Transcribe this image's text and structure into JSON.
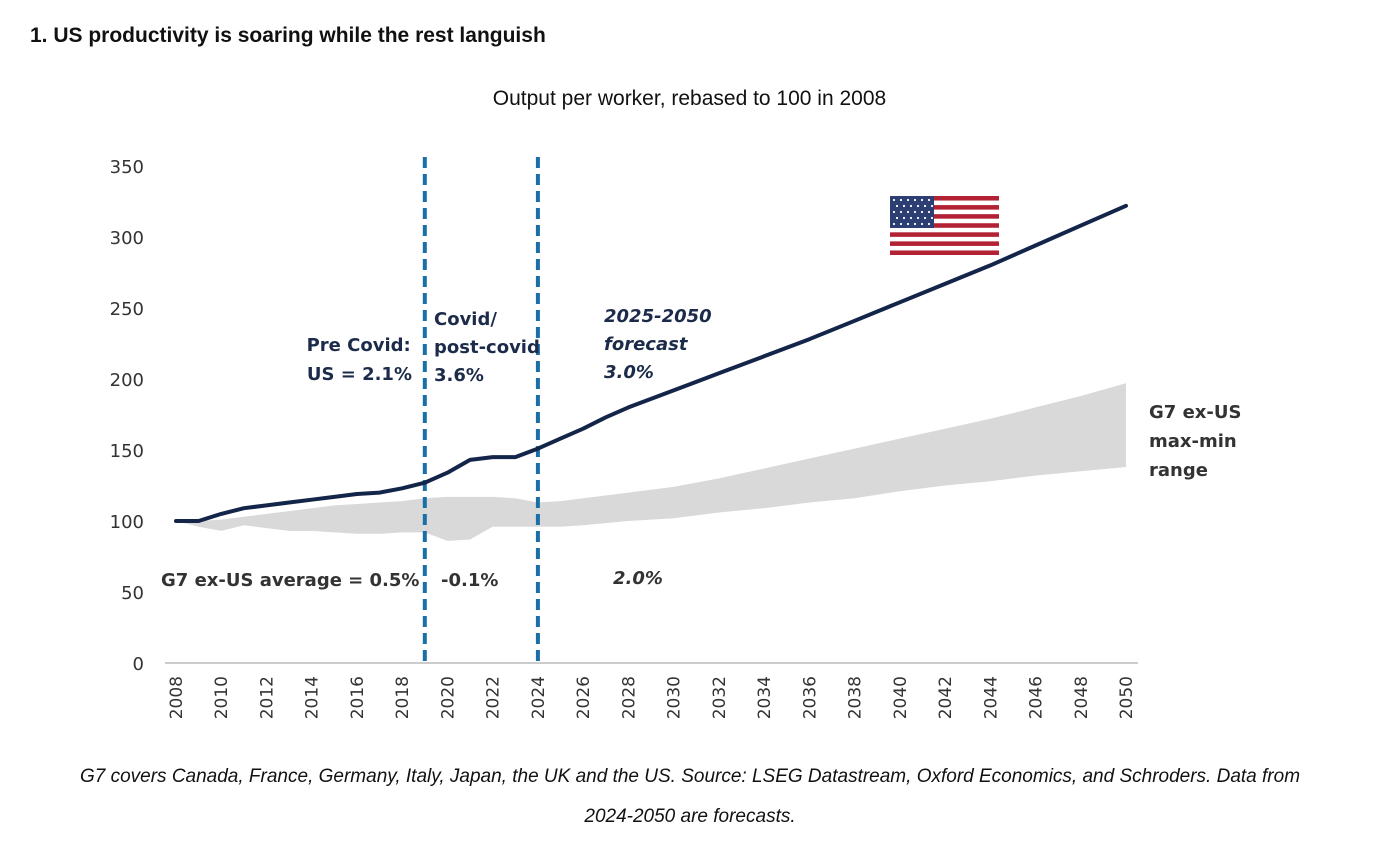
{
  "heading": "1. US productivity is soaring while the rest languish",
  "caption_line1": "G7 covers Canada, France, Germany, Italy, Japan, the UK and the US. Source: LSEG Datastream, Oxford Economics, and Schroders. Data from",
  "caption_line2": "2024-2050 are forecasts.",
  "colors": {
    "us_line": "#14254a",
    "band": "#d9d9d9",
    "divider": "#1a6fa8",
    "axis": "#cccccc"
  },
  "chart_data": {
    "type": "line",
    "title": "Output per worker, rebased to 100 in 2008",
    "ylim": [
      0,
      350
    ],
    "yticks": [
      0,
      50,
      100,
      150,
      200,
      250,
      300,
      350
    ],
    "xlim": [
      2008,
      2050
    ],
    "xticks": [
      2008,
      2010,
      2012,
      2014,
      2016,
      2018,
      2020,
      2022,
      2024,
      2026,
      2028,
      2030,
      2032,
      2034,
      2036,
      2038,
      2040,
      2042,
      2044,
      2046,
      2048,
      2050
    ],
    "grid": false,
    "series": [
      {
        "type": "line",
        "x": [
          2008,
          2009,
          2010,
          2011,
          2012,
          2013,
          2014,
          2015,
          2016,
          2017,
          2018,
          2019,
          2020,
          2021,
          2022,
          2023,
          2024,
          2025,
          2026,
          2027,
          2028,
          2029,
          2030,
          2032,
          2034,
          2036,
          2038,
          2040,
          2042,
          2044,
          2046,
          2048,
          2050
        ],
        "values": [
          100,
          100,
          105,
          109,
          111,
          113,
          115,
          117,
          119,
          120,
          123,
          127,
          134,
          143,
          145,
          145,
          151,
          158,
          165,
          173,
          180,
          186,
          192,
          204,
          216,
          228,
          241,
          254,
          267,
          280,
          294,
          308,
          322
        ]
      },
      {
        "type": "band",
        "x": [
          2008,
          2009,
          2010,
          2011,
          2012,
          2013,
          2014,
          2015,
          2016,
          2017,
          2018,
          2019,
          2020,
          2021,
          2022,
          2023,
          2024,
          2025,
          2026,
          2028,
          2030,
          2032,
          2034,
          2036,
          2038,
          2040,
          2042,
          2044,
          2046,
          2048,
          2050
        ],
        "max": [
          100,
          100,
          101,
          103,
          105,
          107,
          109,
          111,
          112,
          113,
          114,
          116,
          117,
          117,
          117,
          116,
          113,
          114,
          116,
          120,
          124,
          130,
          137,
          144,
          151,
          158,
          165,
          172,
          180,
          188,
          197
        ],
        "min": [
          100,
          96,
          93,
          97,
          95,
          93,
          93,
          92,
          91,
          91,
          92,
          92,
          86,
          87,
          96,
          96,
          96,
          96,
          97,
          100,
          102,
          106,
          109,
          113,
          116,
          121,
          125,
          128,
          132,
          135,
          138
        ]
      }
    ],
    "dividers": [
      2019,
      2024
    ],
    "annotations": {
      "pre_covid": [
        "Pre Covid:",
        "US = 2.1%"
      ],
      "covid": [
        "Covid/",
        "post-covid",
        "3.6%"
      ],
      "forecast": [
        "2025-2050",
        "forecast",
        "3.0%"
      ],
      "band_label": [
        "G7 ex-US",
        "max-min",
        "range"
      ],
      "g7_pre": "G7 ex-US average = 0.5%",
      "g7_covid": "-0.1%",
      "g7_forecast": "2.0%"
    }
  }
}
